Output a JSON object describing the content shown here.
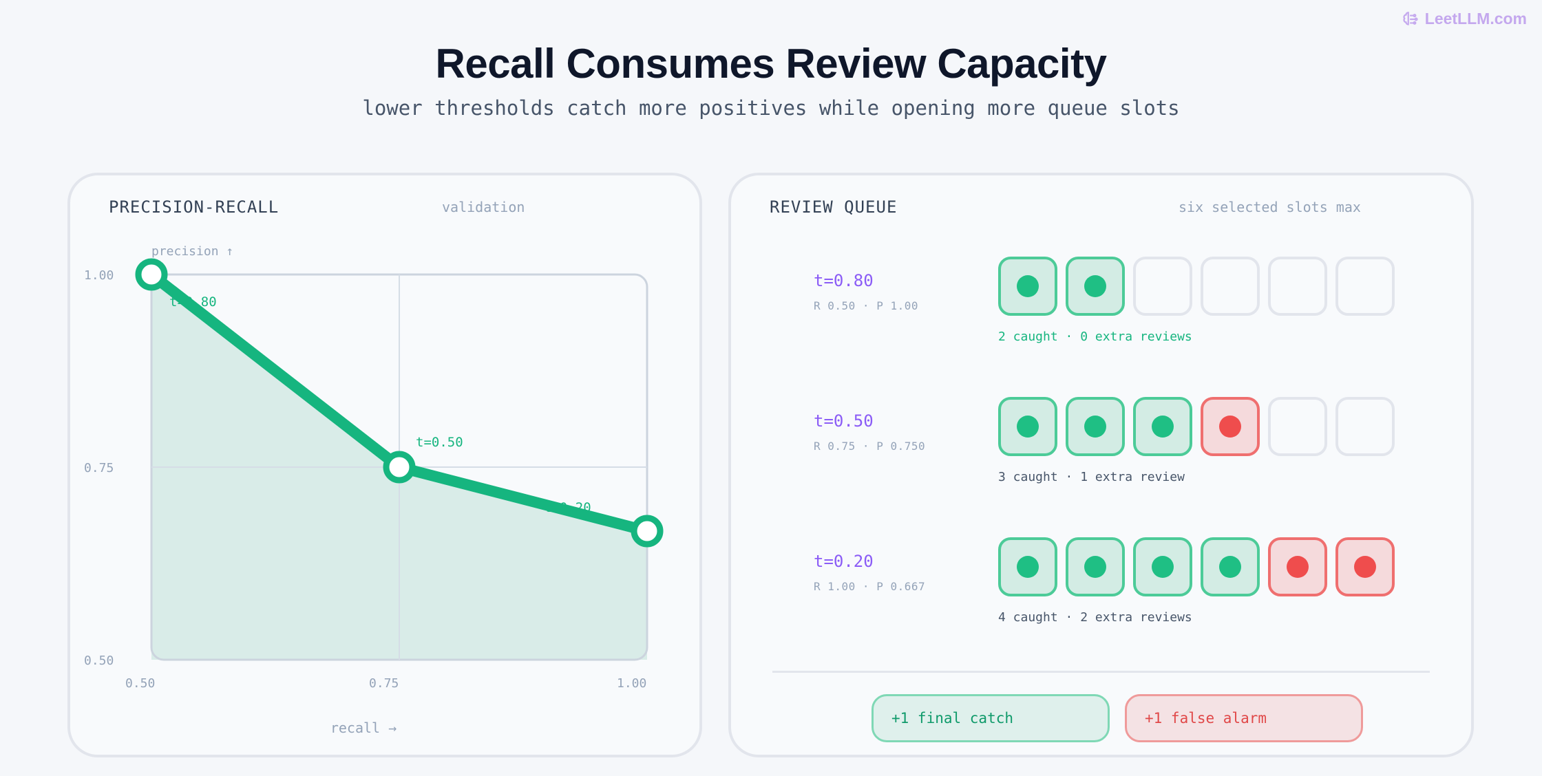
{
  "brand": {
    "name": "LeetLLM.com",
    "icon": "brain-icon",
    "color": "#c4a8ee"
  },
  "header": {
    "title": "Recall Consumes Review Capacity",
    "subtitle": "lower thresholds catch more positives while opening more queue slots"
  },
  "left_panel": {
    "title": "PRECISION-RECALL",
    "note": "validation"
  },
  "chart_data": {
    "type": "line",
    "title": "PRECISION-RECALL",
    "subtitle": "validation",
    "xlabel": "recall →",
    "ylabel": "precision ↑",
    "xlim": [
      0.5,
      1.0
    ],
    "ylim": [
      0.5,
      1.0
    ],
    "x_ticks": [
      "0.50",
      "0.75",
      "1.00"
    ],
    "y_ticks": [
      "1.00",
      "0.75",
      "0.50"
    ],
    "grid": true,
    "fill_under": true,
    "color": "#16b57f",
    "series": [
      {
        "points": [
          {
            "x": 0.5,
            "y": 1.0,
            "label": "t=0.80"
          },
          {
            "x": 0.75,
            "y": 0.75,
            "label": "t=0.50"
          },
          {
            "x": 1.0,
            "y": 0.667,
            "label": "t=0.20"
          }
        ]
      }
    ]
  },
  "right_panel": {
    "title": "REVIEW QUEUE",
    "note": "six selected slots max",
    "rows": [
      {
        "threshold": "t=0.80",
        "metrics": "R 0.50 · P 1.00",
        "caption": "2 caught · 0 extra reviews",
        "caption_color": "#16b57f",
        "slots": [
          "catch",
          "catch",
          "empty",
          "empty",
          "empty",
          "empty"
        ]
      },
      {
        "threshold": "t=0.50",
        "metrics": "R 0.75 · P 0.750",
        "caption": "3 caught · 1 extra review",
        "caption_color": "#475569",
        "slots": [
          "catch",
          "catch",
          "catch",
          "alarm",
          "empty",
          "empty"
        ]
      },
      {
        "threshold": "t=0.20",
        "metrics": "R 1.00 · P 0.667",
        "caption": "4 caught · 2 extra reviews",
        "caption_color": "#475569",
        "slots": [
          "catch",
          "catch",
          "catch",
          "catch",
          "alarm",
          "alarm"
        ]
      }
    ],
    "legend": {
      "catch": "+1 final catch",
      "alarm": "+1 false alarm"
    }
  },
  "colors": {
    "accent_green": "#16b57f",
    "accent_red": "#ef4d4d",
    "accent_purple": "#8b5cf6"
  }
}
